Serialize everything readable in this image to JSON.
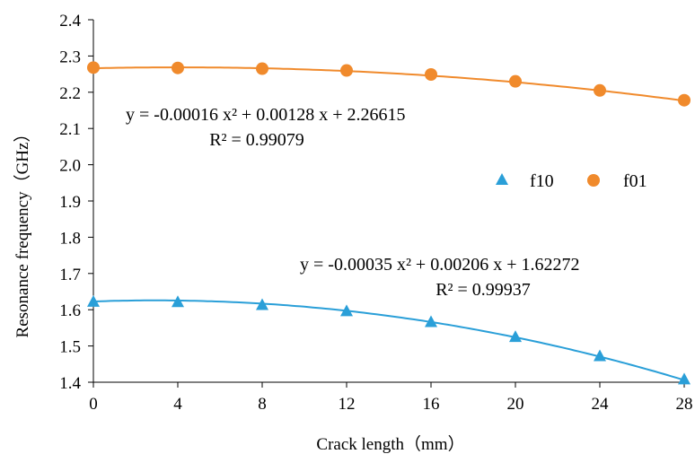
{
  "chart_data": {
    "type": "scatter",
    "xlabel": "Crack length（mm）",
    "ylabel": "Resonance frequency（GHz）",
    "xlim": [
      0,
      28
    ],
    "ylim": [
      1.4,
      2.4
    ],
    "xticks": [
      "0",
      "4",
      "8",
      "12",
      "16",
      "20",
      "24",
      "28"
    ],
    "yticks": [
      "1.4",
      "1.5",
      "1.6",
      "1.7",
      "1.8",
      "1.9",
      "2.0",
      "2.1",
      "2.2",
      "2.3",
      "2.4"
    ],
    "grid": false,
    "legend_position": "center-right",
    "x": [
      0,
      4,
      8,
      12,
      16,
      20,
      24,
      28
    ],
    "series": [
      {
        "name": "f10",
        "marker": "triangle",
        "color": "#2a9fd8",
        "values": [
          1.623,
          1.622,
          1.614,
          1.597,
          1.567,
          1.526,
          1.473,
          1.409
        ],
        "fit": {
          "a": -0.00035,
          "b": 0.00206,
          "c": 1.62272
        },
        "equation": "y = -0.00035 x² + 0.00206 x + 1.62272",
        "r2_label": "R² = 0.99937"
      },
      {
        "name": "f01",
        "marker": "circle",
        "color": "#f08a2c",
        "values": [
          2.268,
          2.267,
          2.265,
          2.26,
          2.249,
          2.23,
          2.205,
          2.178
        ],
        "fit": {
          "a": -0.00016,
          "b": 0.00128,
          "c": 2.26615
        },
        "equation": "y = -0.00016 x² + 0.00128 x + 2.26615",
        "r2_label": "R² = 0.99079"
      }
    ]
  }
}
